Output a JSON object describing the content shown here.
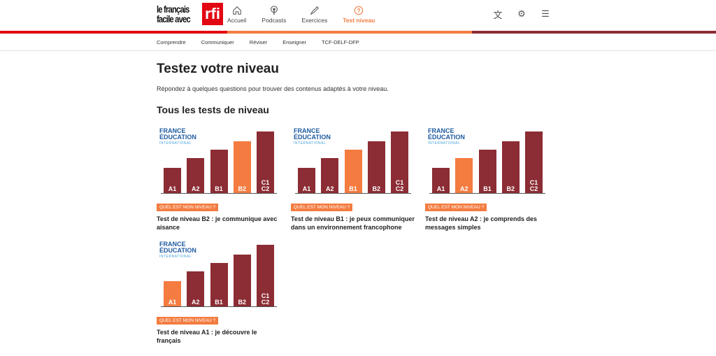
{
  "header": {
    "logo_text": "le français facile avec",
    "logo_brand": "rfi",
    "nav": [
      {
        "label": "Accueil",
        "icon": "home-icon"
      },
      {
        "label": "Podcasts",
        "icon": "podcast-icon"
      },
      {
        "label": "Exercices",
        "icon": "pencil-icon"
      },
      {
        "label": "Test niveau",
        "icon": "question-icon",
        "active": true
      }
    ]
  },
  "subnav": [
    "Comprendre",
    "Communiquer",
    "Réviser",
    "Enseigner",
    "TCF-DELF-DFP"
  ],
  "page": {
    "title": "Testez votre niveau",
    "intro": "Répondez à quelques questions pour trouver des contenus adaptés à votre niveau.",
    "section": "Tous les tests de niveau"
  },
  "levels": [
    "A1",
    "A2",
    "B1",
    "B2",
    "C1\nC2"
  ],
  "brand": {
    "line1": "FRANCE",
    "line2": "ÉDUCATION",
    "line3": "INTERNATIONAL"
  },
  "colors": {
    "accent": "#f47c40",
    "red": "#e30613",
    "bar": "#8c2c34"
  },
  "cards": [
    {
      "tag": "QUEL EST MON NIVEAU ?",
      "title": "Test de niveau B2 : je communique avec aisance",
      "highlight": 3
    },
    {
      "tag": "QUEL EST MON NIVEAU ?",
      "title": "Test de niveau B1 : je peux communiquer dans un environnement francophone",
      "highlight": 2
    },
    {
      "tag": "QUEL EST MON NIVEAU ?",
      "title": "Test de niveau A2 : je comprends des messages simples",
      "highlight": 1
    },
    {
      "tag": "QUEL EST MON NIVEAU ?",
      "title": "Test de niveau A1 : je découvre le français",
      "highlight": 0
    }
  ]
}
